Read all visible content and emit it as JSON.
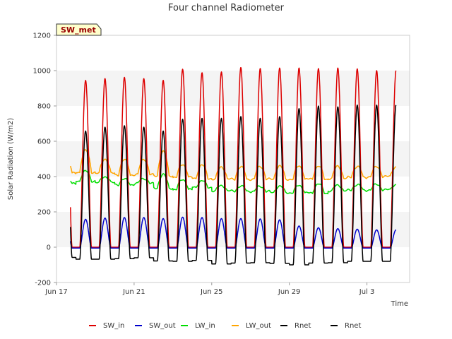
{
  "chart_data": {
    "type": "line",
    "title": "Four channel Radiometer",
    "xlabel": "Time",
    "ylabel": "Solar Radiation (W/m2)",
    "ylim": [
      -200,
      1200
    ],
    "yticks": [
      -200,
      0,
      200,
      400,
      600,
      800,
      1000,
      1200
    ],
    "xlim": [
      0,
      18.2
    ],
    "xticks": [
      {
        "day": 0,
        "label": "Jun 17"
      },
      {
        "day": 4,
        "label": "Jun 21"
      },
      {
        "day": 8,
        "label": "Jun 25"
      },
      {
        "day": 12,
        "label": "Jun 29"
      },
      {
        "day": 16,
        "label": "Jul 3"
      }
    ],
    "badge": "SW_met",
    "grid": "horizontal bands",
    "legend_position": "bottom",
    "x_unit": "days since Jun 17",
    "series": [
      {
        "name": "SW_in",
        "color": "#dd0000",
        "kind": "day_peak",
        "base": 0,
        "daily": [
          955,
          945,
          955,
          962,
          955,
          945,
          1008,
          988,
          993,
          1018,
          1012,
          1015,
          1015,
          1012,
          1015,
          1010,
          1000
        ]
      },
      {
        "name": "SW_out",
        "color": "#0000cc",
        "kind": "day_peak",
        "base": -5,
        "daily": [
          160,
          158,
          165,
          168,
          168,
          162,
          170,
          168,
          162,
          162,
          160,
          155,
          120,
          110,
          105,
          102,
          98
        ]
      },
      {
        "name": "LW_in",
        "color": "#00dd00",
        "kind": "diurnal",
        "night": [
          358,
          375,
          365,
          355,
          360,
          335,
          325,
          340,
          318,
          318,
          315,
          310,
          308,
          305,
          320,
          322,
          325
        ],
        "day": [
          395,
          430,
          400,
          385,
          390,
          410,
          385,
          375,
          350,
          345,
          345,
          345,
          350,
          360,
          350,
          355,
          355
        ]
      },
      {
        "name": "LW_out",
        "color": "#ffa500",
        "kind": "diurnal",
        "night": [
          418,
          425,
          418,
          410,
          410,
          405,
          395,
          390,
          385,
          385,
          385,
          385,
          385,
          385,
          390,
          395,
          400
        ],
        "day": [
          505,
          548,
          500,
          495,
          500,
          540,
          470,
          465,
          455,
          455,
          458,
          460,
          460,
          460,
          458,
          458,
          455
        ]
      },
      {
        "name": "Rnet",
        "color": "#000000",
        "kind": "day_peak",
        "base": -65,
        "daily": [
          670,
          658,
          680,
          688,
          680,
          658,
          725,
          730,
          730,
          740,
          730,
          740,
          785,
          800,
          795,
          805,
          805
        ],
        "night_vals": [
          -58,
          -68,
          -68,
          -65,
          -60,
          -78,
          -80,
          -75,
          -95,
          -90,
          -88,
          -92,
          -100,
          -90,
          -88,
          -80,
          -80
        ]
      },
      {
        "name": "Rnet",
        "color": "#000000",
        "kind": "duplicate_of_previous"
      }
    ]
  }
}
